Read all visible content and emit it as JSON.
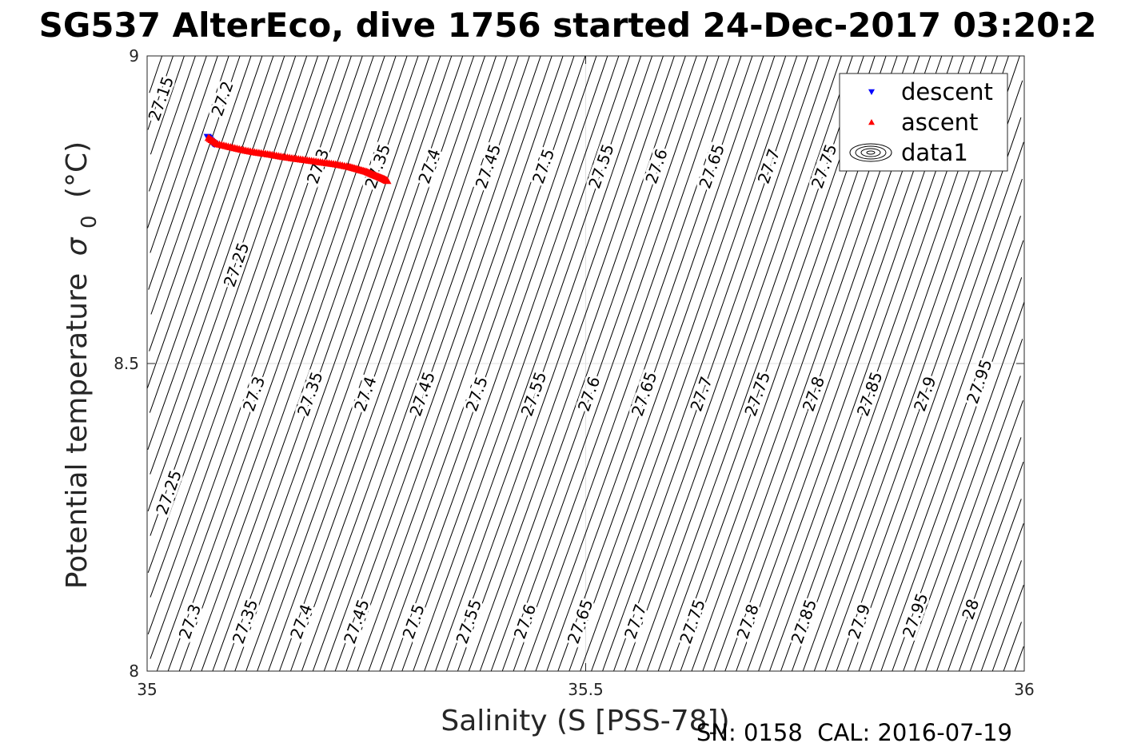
{
  "chart_data": {
    "type": "scatter",
    "title": "SG537 AlterEco, dive 1756 started 24-Dec-2017 03:20:2",
    "xlabel": "Salinity (S [PSS-78])",
    "ylabel": "Potential temperature",
    "ylabel_symbol": "σ",
    "ylabel_subscript": "0",
    "ylabel_unit": "(°C)",
    "xlim": [
      35,
      36
    ],
    "ylim": [
      8,
      9
    ],
    "xticks": [
      "35",
      "35.5",
      "36"
    ],
    "yticks": [
      "8",
      "8.5",
      "9"
    ],
    "grid": true,
    "legend_position": "top-right",
    "legend": [
      {
        "label": "descent",
        "marker": "triangle-down",
        "color": "#0000ff"
      },
      {
        "label": "ascent",
        "marker": "triangle-up",
        "color": "#ff0000"
      },
      {
        "label": "data1",
        "marker": "contour",
        "color": "#000000"
      }
    ],
    "series": [
      {
        "name": "descent",
        "color": "#0000ff",
        "points": [
          [
            35.069,
            8.868
          ],
          [
            35.071,
            8.865
          ],
          [
            35.073,
            8.861
          ],
          [
            35.075,
            8.858
          ],
          [
            35.077,
            8.857
          ]
        ]
      },
      {
        "name": "ascent",
        "color": "#ff0000",
        "points": [
          [
            35.07,
            8.867
          ],
          [
            35.08,
            8.857
          ],
          [
            35.095,
            8.852
          ],
          [
            35.11,
            8.847
          ],
          [
            35.125,
            8.843
          ],
          [
            35.14,
            8.84
          ],
          [
            35.155,
            8.836
          ],
          [
            35.17,
            8.833
          ],
          [
            35.185,
            8.83
          ],
          [
            35.2,
            8.827
          ],
          [
            35.215,
            8.824
          ],
          [
            35.23,
            8.82
          ],
          [
            35.24,
            8.816
          ],
          [
            35.25,
            8.812
          ],
          [
            35.258,
            8.807
          ],
          [
            35.265,
            8.803
          ],
          [
            35.27,
            8.8
          ],
          [
            35.274,
            8.797
          ]
        ]
      }
    ],
    "contours": {
      "color": "#000000",
      "labels": [
        {
          "text": "27.15",
          "x": 35.017,
          "y": 8.93
        },
        {
          "text": "27.2",
          "x": 35.087,
          "y": 8.93
        },
        {
          "text": "27.3",
          "x": 35.196,
          "y": 8.82
        },
        {
          "text": "27.35",
          "x": 35.264,
          "y": 8.82
        },
        {
          "text": "27.4",
          "x": 35.323,
          "y": 8.82
        },
        {
          "text": "27.45",
          "x": 35.39,
          "y": 8.82
        },
        {
          "text": "27.5",
          "x": 35.453,
          "y": 8.82
        },
        {
          "text": "27.55",
          "x": 35.519,
          "y": 8.82
        },
        {
          "text": "27.6",
          "x": 35.582,
          "y": 8.82
        },
        {
          "text": "27.65",
          "x": 35.645,
          "y": 8.82
        },
        {
          "text": "27.7",
          "x": 35.71,
          "y": 8.82
        },
        {
          "text": "27.75",
          "x": 35.773,
          "y": 8.82
        },
        {
          "text": "27.25",
          "x": 35.103,
          "y": 8.66
        },
        {
          "text": "27.3",
          "x": 35.123,
          "y": 8.45
        },
        {
          "text": "27.35",
          "x": 35.187,
          "y": 8.45
        },
        {
          "text": "27.4",
          "x": 35.25,
          "y": 8.45
        },
        {
          "text": "27.45",
          "x": 35.315,
          "y": 8.45
        },
        {
          "text": "27.5",
          "x": 35.377,
          "y": 8.45
        },
        {
          "text": "27.55",
          "x": 35.442,
          "y": 8.45
        },
        {
          "text": "27.6",
          "x": 35.505,
          "y": 8.45
        },
        {
          "text": "27.65",
          "x": 35.568,
          "y": 8.45
        },
        {
          "text": "27.7",
          "x": 35.633,
          "y": 8.45
        },
        {
          "text": "27.75",
          "x": 35.697,
          "y": 8.45
        },
        {
          "text": "27.8",
          "x": 35.761,
          "y": 8.45
        },
        {
          "text": "27.85",
          "x": 35.825,
          "y": 8.45
        },
        {
          "text": "27.9",
          "x": 35.888,
          "y": 8.45
        },
        {
          "text": "27.95",
          "x": 35.95,
          "y": 8.47
        },
        {
          "text": "27.25",
          "x": 35.026,
          "y": 8.29
        },
        {
          "text": "27.3",
          "x": 35.05,
          "y": 8.08
        },
        {
          "text": "27.35",
          "x": 35.113,
          "y": 8.08
        },
        {
          "text": "27.4",
          "x": 35.177,
          "y": 8.08
        },
        {
          "text": "27.45",
          "x": 35.24,
          "y": 8.08
        },
        {
          "text": "27.5",
          "x": 35.305,
          "y": 8.08
        },
        {
          "text": "27.55",
          "x": 35.368,
          "y": 8.08
        },
        {
          "text": "27.6",
          "x": 35.432,
          "y": 8.08
        },
        {
          "text": "27.65",
          "x": 35.495,
          "y": 8.08
        },
        {
          "text": "27.7",
          "x": 35.558,
          "y": 8.08
        },
        {
          "text": "27.75",
          "x": 35.623,
          "y": 8.08
        },
        {
          "text": "27.8",
          "x": 35.686,
          "y": 8.08
        },
        {
          "text": "27.85",
          "x": 35.75,
          "y": 8.08
        },
        {
          "text": "27.9",
          "x": 35.813,
          "y": 8.08
        },
        {
          "text": "27.95",
          "x": 35.877,
          "y": 8.09
        },
        {
          "text": "28",
          "x": 35.94,
          "y": 8.1
        }
      ]
    },
    "footer_note": "SN: 0158  CAL: 2016-07-19"
  }
}
